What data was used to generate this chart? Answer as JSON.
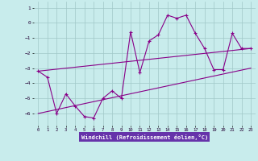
{
  "xlabel": "Windchill (Refroidissement éolien,°C)",
  "background_color": "#c8ecec",
  "grid_color": "#a0c8c8",
  "line_color": "#880088",
  "xlabel_bg": "#6633aa",
  "xlabel_fg": "#ffffff",
  "x_hours": [
    0,
    1,
    2,
    3,
    4,
    5,
    6,
    7,
    8,
    9,
    10,
    11,
    12,
    13,
    14,
    15,
    16,
    17,
    18,
    19,
    20,
    21,
    22,
    23
  ],
  "y_data": [
    -3.2,
    -3.6,
    -6.0,
    -4.7,
    -5.5,
    -6.2,
    -6.3,
    -5.0,
    -4.5,
    -5.0,
    -0.6,
    -3.3,
    -1.2,
    -0.8,
    0.5,
    0.3,
    0.5,
    -0.7,
    -1.7,
    -3.1,
    -3.1,
    -0.7,
    -1.7,
    -1.7
  ],
  "trend1": [
    -3.2,
    -1.7
  ],
  "trend1_x": [
    0,
    23
  ],
  "trend2": [
    -6.0,
    -3.0
  ],
  "trend2_x": [
    0,
    23
  ],
  "ylim": [
    -6.8,
    1.4
  ],
  "yticks": [
    1,
    0,
    -1,
    -2,
    -3,
    -4,
    -5,
    -6
  ],
  "xlim": [
    -0.5,
    23.5
  ],
  "xticks": [
    0,
    1,
    2,
    3,
    4,
    5,
    6,
    7,
    8,
    9,
    10,
    11,
    12,
    13,
    14,
    15,
    16,
    17,
    18,
    19,
    20,
    21,
    22,
    23
  ]
}
